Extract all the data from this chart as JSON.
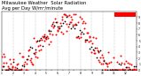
{
  "title": "Milwaukee Weather  Solar Radiation",
  "subtitle": "Avg per Day W/m²/minute",
  "title_fontsize": 3.8,
  "background": "#ffffff",
  "ylim": [
    0,
    10
  ],
  "xlim": [
    1,
    366
  ],
  "grid_positions": [
    32,
    60,
    91,
    121,
    152,
    182,
    213,
    244,
    274,
    305,
    335,
    366
  ],
  "ytick_positions": [
    0,
    1,
    2,
    3,
    4,
    5,
    6,
    7,
    8,
    9
  ],
  "ytick_labels": [
    "0",
    "1",
    "2",
    "3",
    "4",
    "5",
    "6",
    "7",
    "8",
    "9"
  ],
  "xtick_positions": [
    1,
    15,
    32,
    46,
    60,
    74,
    91,
    105,
    121,
    135,
    152,
    166,
    182,
    196,
    213,
    227,
    244,
    258,
    274,
    288,
    305,
    319,
    335,
    349,
    366
  ],
  "xtick_labels": [
    "1",
    "",
    "2",
    "",
    "3",
    "",
    "4",
    "",
    "5",
    "",
    "6",
    "",
    "7",
    "",
    "8",
    "",
    "9",
    "",
    "10",
    "",
    "11",
    "",
    "12",
    "",
    ""
  ],
  "legend_color": "#ff0000",
  "dot_size_red": 2.0,
  "dot_size_black": 1.5,
  "seed": 0
}
